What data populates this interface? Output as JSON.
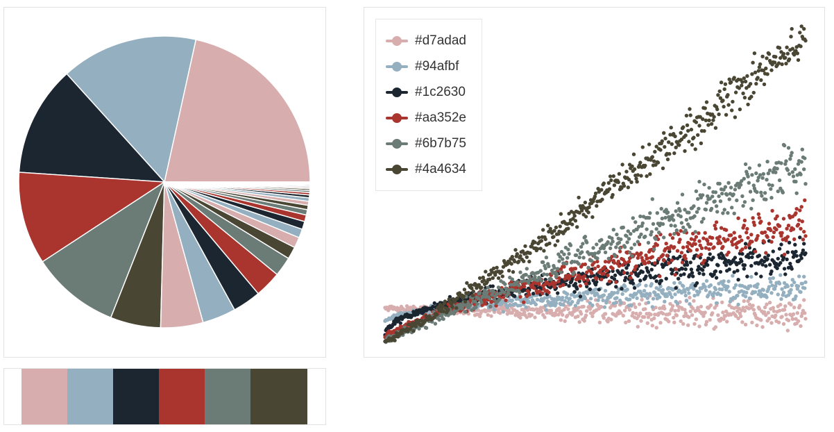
{
  "palette": [
    "#d7adad",
    "#94afbf",
    "#1c2630",
    "#aa352e",
    "#6b7b75",
    "#4a4634"
  ],
  "chart_data": [
    {
      "type": "pie",
      "values": [
        22.0,
        15.5,
        12.5,
        10.5,
        10.0,
        5.7,
        4.8,
        3.8,
        3.2,
        3.0,
        2.2,
        1.4,
        1.2,
        1.0,
        0.9,
        0.75,
        0.6,
        0.5,
        0.45,
        0.4,
        0.32,
        0.27,
        0.23,
        0.2,
        0.17,
        0.15,
        0.13,
        0.11,
        0.1,
        0.09
      ],
      "colors": [
        "#d7adad",
        "#94afbf",
        "#1c2630",
        "#aa352e",
        "#6b7b75",
        "#4a4634"
      ]
    },
    {
      "type": "scatter",
      "legend_position": "top-left",
      "grid": false,
      "xlim": [
        0,
        100
      ],
      "ylim": [
        0,
        100
      ],
      "series": [
        {
          "name": "#d7adad",
          "color": "#d7adad",
          "start": 10.5,
          "end": 8.5,
          "shape": "concave",
          "spread": 4.5
        },
        {
          "name": "#94afbf",
          "color": "#94afbf",
          "start": 6,
          "end": 17,
          "shape": "sqrt",
          "spread": 4
        },
        {
          "name": "#1c2630",
          "color": "#1c2630",
          "start": 2,
          "end": 27,
          "shape": "sqrt",
          "spread": 5
        },
        {
          "name": "#aa352e",
          "color": "#aa352e",
          "start": 1,
          "end": 37,
          "shape": "mild",
          "spread": 6
        },
        {
          "name": "#6b7b75",
          "color": "#6b7b75",
          "start": 0.5,
          "end": 56,
          "shape": "linear",
          "spread": 7
        },
        {
          "name": "#4a4634",
          "color": "#4a4634",
          "start": 0,
          "end": 95,
          "shape": "convex",
          "spread": 6
        }
      ]
    }
  ],
  "swatches": [
    "#d7adad",
    "#94afbf",
    "#1c2630",
    "#aa352e",
    "#6b7b75",
    "#4a4634"
  ]
}
